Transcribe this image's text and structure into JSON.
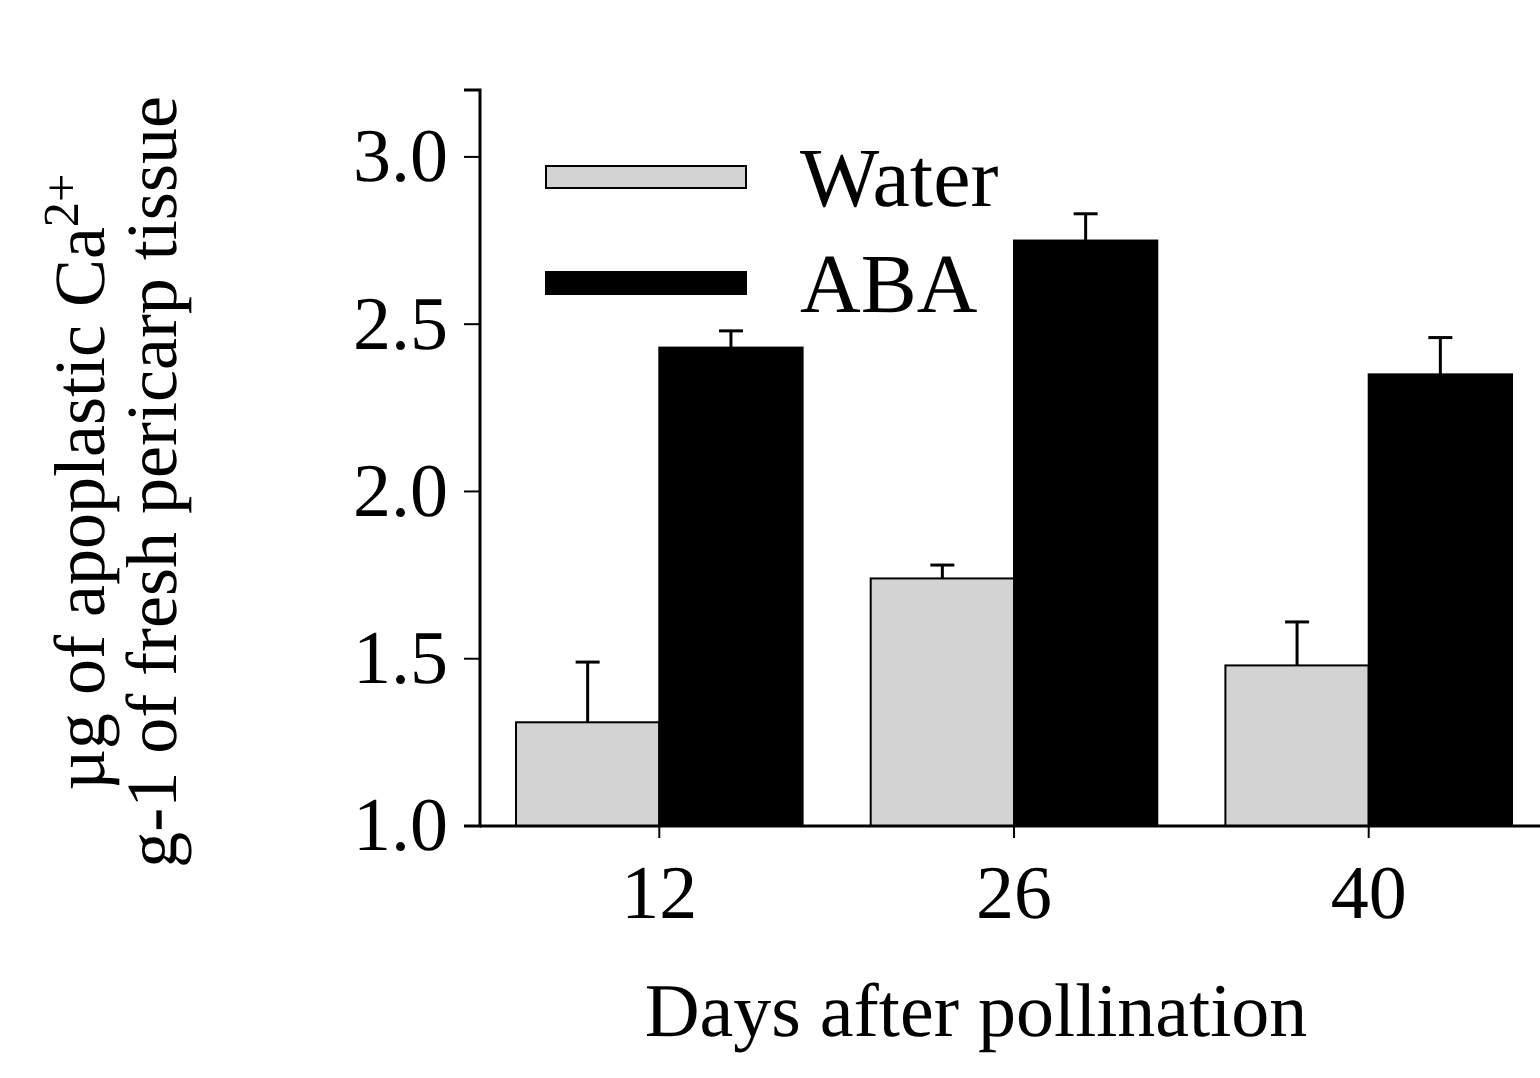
{
  "chart_data": {
    "type": "bar",
    "xlabel": "Days after pollination",
    "ylabel": "µg of apoplastic Ca$^{2+}$\ng-1 of fresh pericarp tissue",
    "categories": [
      "12",
      "26",
      "40"
    ],
    "series": [
      {
        "name": "Water",
        "color": "#d3d3d3",
        "values": [
          1.31,
          1.74,
          1.48
        ],
        "errors": [
          [
            1.31,
            1.49
          ],
          [
            1.74,
            1.78
          ],
          [
            1.48,
            1.61
          ]
        ]
      },
      {
        "name": "ABA",
        "color": "#000000",
        "values": [
          2.43,
          2.75,
          2.35
        ],
        "errors": [
          [
            2.43,
            2.48
          ],
          [
            2.75,
            2.83
          ],
          [
            2.35,
            2.46
          ]
        ]
      }
    ],
    "ylim": [
      1.0,
      3.2
    ],
    "yticks": [
      {
        "value": 1.0,
        "label": "1.0"
      },
      {
        "value": 1.5,
        "label": "1.5"
      },
      {
        "value": 2.0,
        "label": "2.0"
      },
      {
        "value": 2.5,
        "label": "2.5"
      },
      {
        "value": 3.0,
        "label": "3.0"
      }
    ],
    "grid": false,
    "legend": "top left"
  }
}
